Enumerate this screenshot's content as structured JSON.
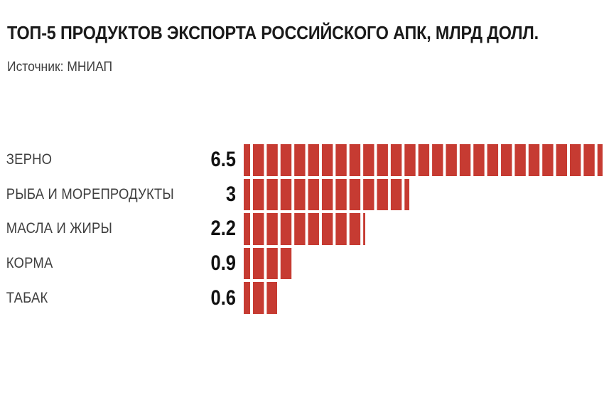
{
  "title": "ТОП-5 ПРОДУКТОВ ЭКСПОРТА РОССИЙСКОГО АПК, МЛРД ДОЛЛ.",
  "source": "Источник: МНИАП",
  "colors": {
    "bar": "#c63b32",
    "title": "#1a1a1a",
    "label": "#3f3f3f",
    "value": "#111111",
    "background": "#ffffff"
  },
  "chart_data": {
    "type": "bar",
    "orientation": "horizontal",
    "title": "ТОП-5 ПРОДУКТОВ ЭКСПОРТА РОССИЙСКОГО АПК, МЛРД ДОЛЛ.",
    "source": "Источник: МНИАП",
    "unit": "млрд долл.",
    "categories": [
      "ЗЕРНО",
      "РЫБА И МОРЕПРОДУКТЫ",
      "МАСЛА И ЖИРЫ",
      "КОРМА",
      "ТАБАК"
    ],
    "values": [
      6.5,
      3,
      2.2,
      0.9,
      0.6
    ],
    "value_labels": [
      "6.5",
      "3",
      "2.2",
      "0.9",
      "0.6"
    ],
    "xlim": [
      0,
      6.5
    ],
    "grid": false,
    "legend": "none",
    "bar_style": "segmented-stripes"
  }
}
